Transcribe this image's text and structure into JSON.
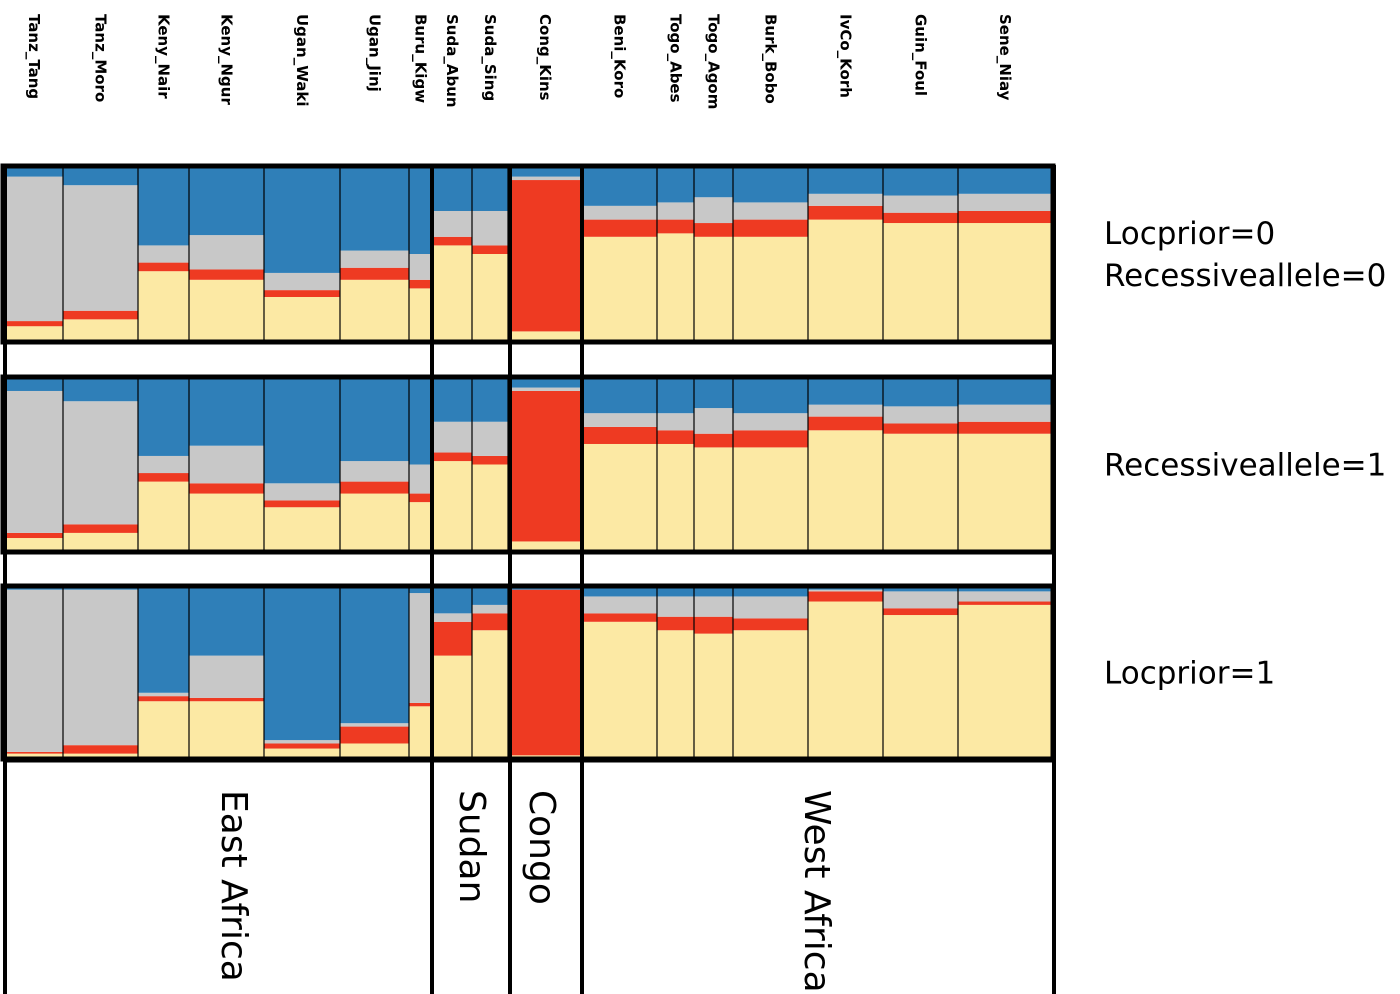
{
  "chart_data": {
    "type": "bar",
    "stacked": true,
    "orientation": "vertical",
    "ylim": [
      0,
      1
    ],
    "grid": false,
    "cluster_colors": [
      "#fce9a4",
      "#ee3a22",
      "#c8c8c8",
      "#2f7fb8"
    ],
    "categories": [
      "Tanz_Tang",
      "Tanz_Moro",
      "Keny_Nair",
      "Keny_Ngur",
      "Ugan_Waki",
      "Ugan_Jinj",
      "Buru_Kigw",
      "Suda_Abun",
      "Suda_Sing",
      "Cong_Kins",
      "Beni_Koro",
      "Togo_Abes",
      "Togo_Agom",
      "Burk_Bobo",
      "IvCo_Korh",
      "Guin_Foul",
      "Sene_Niay"
    ],
    "approx_sample_counts": [
      23,
      30,
      20,
      30,
      30,
      28,
      9,
      16,
      14,
      30,
      30,
      15,
      16,
      30,
      30,
      30,
      37
    ],
    "regions": [
      {
        "name": "East Africa",
        "populations": 7
      },
      {
        "name": "Sudan",
        "populations": 2
      },
      {
        "name": "Congo",
        "populations": 1
      },
      {
        "name": "West Africa",
        "populations": 7
      }
    ],
    "panels": [
      {
        "label_lines": [
          "Locprior=0",
          "Recessiveallele=0"
        ],
        "mean_proportions": [
          [
            0.08,
            0.03,
            0.84,
            0.05
          ],
          [
            0.12,
            0.05,
            0.73,
            0.1
          ],
          [
            0.4,
            0.05,
            0.1,
            0.45
          ],
          [
            0.35,
            0.06,
            0.2,
            0.39
          ],
          [
            0.25,
            0.04,
            0.1,
            0.61
          ],
          [
            0.35,
            0.07,
            0.1,
            0.48
          ],
          [
            0.3,
            0.05,
            0.15,
            0.5
          ],
          [
            0.55,
            0.05,
            0.15,
            0.25
          ],
          [
            0.5,
            0.05,
            0.2,
            0.25
          ],
          [
            0.05,
            0.88,
            0.02,
            0.05
          ],
          [
            0.6,
            0.1,
            0.08,
            0.22
          ],
          [
            0.62,
            0.08,
            0.1,
            0.2
          ],
          [
            0.6,
            0.08,
            0.15,
            0.17
          ],
          [
            0.6,
            0.1,
            0.1,
            0.2
          ],
          [
            0.7,
            0.08,
            0.07,
            0.15
          ],
          [
            0.68,
            0.06,
            0.1,
            0.16
          ],
          [
            0.68,
            0.07,
            0.1,
            0.15
          ]
        ]
      },
      {
        "label_lines": [
          "Recessiveallele=1"
        ],
        "mean_proportions": [
          [
            0.07,
            0.03,
            0.83,
            0.07
          ],
          [
            0.1,
            0.05,
            0.72,
            0.13
          ],
          [
            0.4,
            0.05,
            0.1,
            0.45
          ],
          [
            0.33,
            0.06,
            0.22,
            0.39
          ],
          [
            0.25,
            0.04,
            0.1,
            0.61
          ],
          [
            0.33,
            0.07,
            0.12,
            0.48
          ],
          [
            0.28,
            0.05,
            0.17,
            0.5
          ],
          [
            0.52,
            0.05,
            0.18,
            0.25
          ],
          [
            0.5,
            0.05,
            0.2,
            0.25
          ],
          [
            0.05,
            0.88,
            0.02,
            0.05
          ],
          [
            0.62,
            0.1,
            0.08,
            0.2
          ],
          [
            0.62,
            0.08,
            0.1,
            0.2
          ],
          [
            0.6,
            0.08,
            0.15,
            0.17
          ],
          [
            0.6,
            0.1,
            0.1,
            0.2
          ],
          [
            0.7,
            0.08,
            0.07,
            0.15
          ],
          [
            0.68,
            0.06,
            0.1,
            0.16
          ],
          [
            0.68,
            0.07,
            0.1,
            0.15
          ]
        ]
      },
      {
        "label_lines": [
          "Locprior=1"
        ],
        "mean_proportions": [
          [
            0.02,
            0.01,
            0.96,
            0.01
          ],
          [
            0.02,
            0.05,
            0.92,
            0.01
          ],
          [
            0.33,
            0.03,
            0.02,
            0.62
          ],
          [
            0.33,
            0.02,
            0.25,
            0.4
          ],
          [
            0.05,
            0.03,
            0.02,
            0.9
          ],
          [
            0.08,
            0.1,
            0.02,
            0.8
          ],
          [
            0.3,
            0.02,
            0.65,
            0.03
          ],
          [
            0.6,
            0.2,
            0.05,
            0.15
          ],
          [
            0.75,
            0.1,
            0.05,
            0.1
          ],
          [
            0.01,
            0.98,
            0.0,
            0.01
          ],
          [
            0.8,
            0.05,
            0.1,
            0.05
          ],
          [
            0.75,
            0.08,
            0.12,
            0.05
          ],
          [
            0.73,
            0.1,
            0.12,
            0.05
          ],
          [
            0.75,
            0.07,
            0.13,
            0.05
          ],
          [
            0.92,
            0.06,
            0.01,
            0.01
          ],
          [
            0.84,
            0.04,
            0.1,
            0.02
          ],
          [
            0.9,
            0.02,
            0.06,
            0.02
          ]
        ]
      }
    ]
  }
}
